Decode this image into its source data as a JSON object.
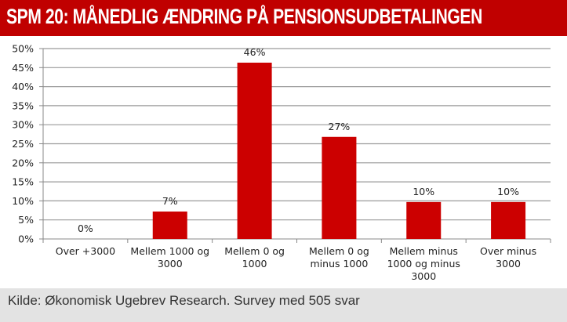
{
  "title": "SPM 20: MÅNEDLIG ÆNDRING PÅ PENSIONSUDBETALINGEN",
  "source": "Kilde: Økonomisk Ugebrev Research. Survey med 505 svar",
  "chart_data": {
    "type": "bar",
    "title": "SPM 20: MÅNEDLIG ÆNDRING PÅ PENSIONSUDBETALINGEN",
    "categories": [
      "Over +3000",
      "Mellem 1000 og 3000",
      "Mellem 0 og 1000",
      "Mellem 0 og minus 1000",
      "Mellem minus 1000 og minus 3000",
      "Over minus 3000"
    ],
    "values": [
      0,
      7.2,
      46.3,
      26.8,
      9.7,
      9.7
    ],
    "data_labels": [
      "0%",
      "7%",
      "46%",
      "27%",
      "10%",
      "10%"
    ],
    "y_ticks": [
      "0%",
      "5%",
      "10%",
      "15%",
      "20%",
      "25%",
      "30%",
      "35%",
      "40%",
      "45%",
      "50%"
    ],
    "ylim": [
      0,
      50
    ],
    "xlabel": "",
    "ylabel": "",
    "grid": true,
    "bar_color": "#cc0000"
  }
}
